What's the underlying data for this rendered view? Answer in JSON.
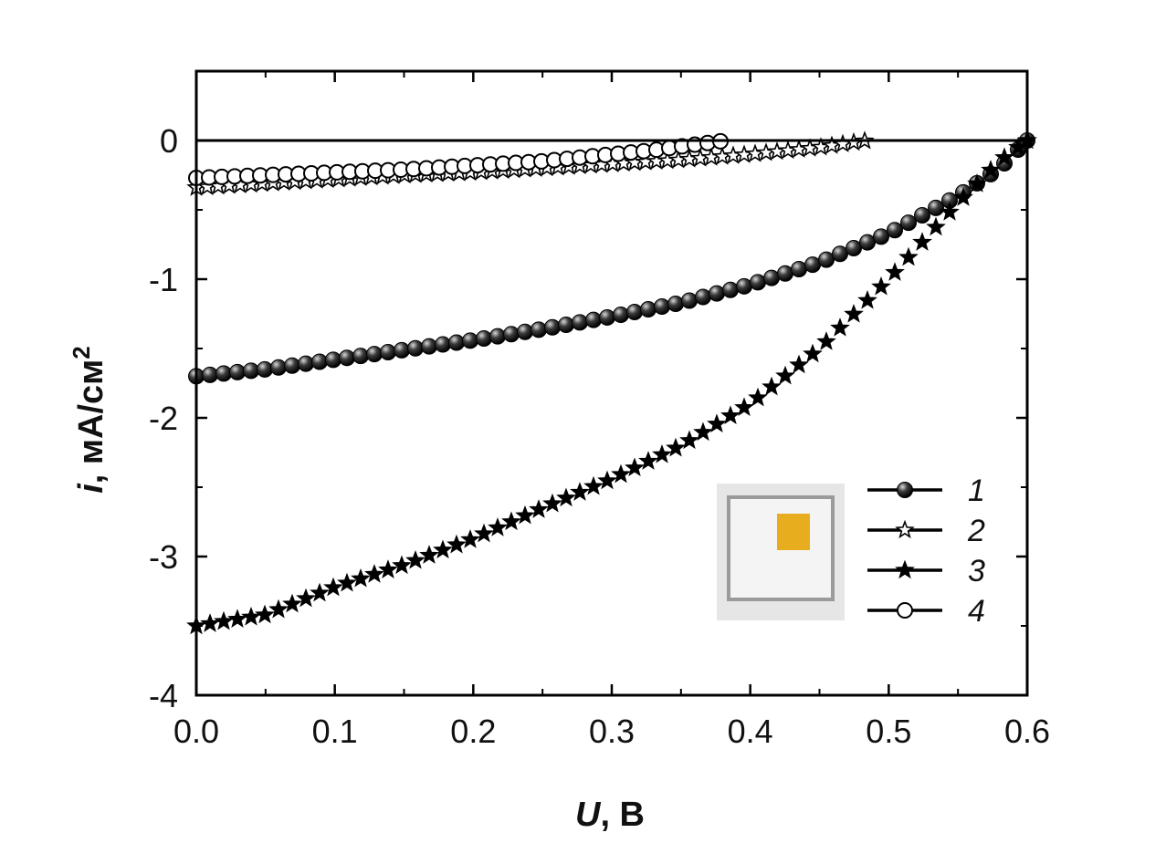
{
  "chart_data": {
    "type": "scatter",
    "title": "",
    "xlabel_var": "U",
    "xlabel_unit": ", В",
    "ylabel_var": "i",
    "ylabel_unit": ", мА/см",
    "ylabel_sup": "2",
    "xlim": [
      0.0,
      0.6
    ],
    "ylim": [
      -4,
      0.5
    ],
    "xticks": [
      "0.0",
      "0.1",
      "0.2",
      "0.3",
      "0.4",
      "0.5",
      "0.6"
    ],
    "yticks": [
      "0",
      "-1",
      "-2",
      "-3",
      "-4"
    ],
    "grid": false,
    "legend_position": "lower-right",
    "zero_line": true,
    "series": [
      {
        "name": "1",
        "marker": "filled-circle",
        "x": [
          0.0,
          0.05,
          0.1,
          0.15,
          0.2,
          0.25,
          0.3,
          0.35,
          0.4,
          0.45,
          0.5,
          0.55,
          0.58,
          0.6
        ],
        "y": [
          -1.7,
          -1.65,
          -1.58,
          -1.51,
          -1.44,
          -1.36,
          -1.27,
          -1.17,
          -1.04,
          -0.88,
          -0.67,
          -0.4,
          -0.2,
          0.0
        ]
      },
      {
        "name": "2",
        "marker": "open-star",
        "x": [
          0.0,
          0.05,
          0.1,
          0.15,
          0.2,
          0.25,
          0.3,
          0.35,
          0.4,
          0.45,
          0.485
        ],
        "y": [
          -0.34,
          -0.31,
          -0.28,
          -0.25,
          -0.23,
          -0.2,
          -0.17,
          -0.14,
          -0.1,
          -0.05,
          0.0
        ]
      },
      {
        "name": "3",
        "marker": "filled-star",
        "x": [
          0.0,
          0.05,
          0.1,
          0.15,
          0.2,
          0.25,
          0.3,
          0.35,
          0.4,
          0.45,
          0.5,
          0.55,
          0.58,
          0.6
        ],
        "y": [
          -3.5,
          -3.42,
          -3.22,
          -3.06,
          -2.87,
          -2.65,
          -2.44,
          -2.2,
          -1.9,
          -1.5,
          -1.0,
          -0.45,
          -0.15,
          0.0
        ]
      },
      {
        "name": "4",
        "marker": "open-circle",
        "x": [
          0.0,
          0.05,
          0.1,
          0.15,
          0.2,
          0.25,
          0.3,
          0.33,
          0.36,
          0.383
        ],
        "y": [
          -0.27,
          -0.25,
          -0.23,
          -0.21,
          -0.18,
          -0.15,
          -0.1,
          -0.07,
          -0.03,
          0.0
        ]
      }
    ]
  },
  "inset": {
    "frame_color": "#e6e6e6",
    "sample_color": "#e7ad1f"
  }
}
